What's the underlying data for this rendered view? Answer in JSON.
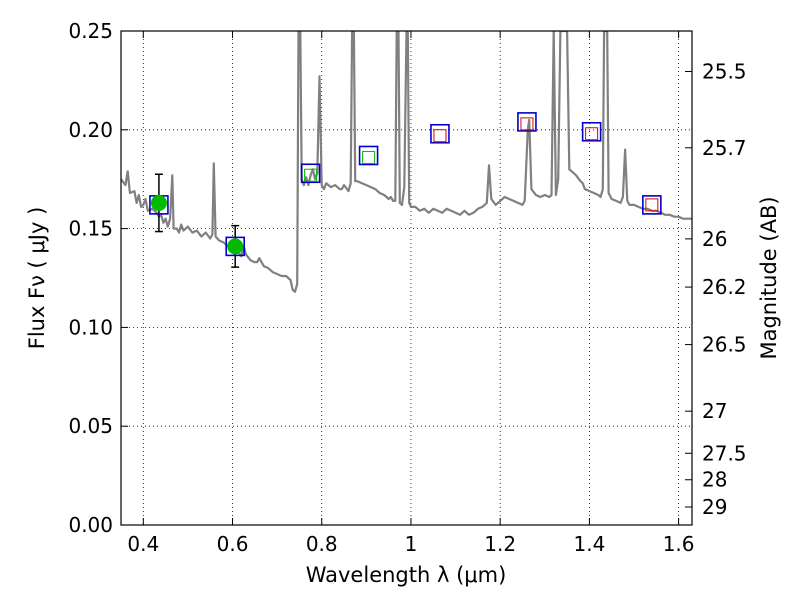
{
  "chart_data": {
    "type": "scatter",
    "xlabel": "Wavelength  λ (μm)",
    "ylabel": "Flux  Fν  ( μJy )",
    "ylabel_right": "Magnitude (AB)",
    "xlim": [
      0.35,
      1.63
    ],
    "ylim": [
      0.0,
      0.25
    ],
    "grid": true,
    "x_ticks": [
      0.4,
      0.6,
      0.8,
      1.0,
      1.2,
      1.4,
      1.6
    ],
    "x_tick_labels": [
      "0.4",
      "0.6",
      "0.8",
      "1",
      "1.2",
      "1.4",
      "1.6"
    ],
    "y_ticks": [
      0.0,
      0.05,
      0.1,
      0.15,
      0.2,
      0.25
    ],
    "y_tick_labels": [
      "0.00",
      "0.05",
      "0.10",
      "0.15",
      "0.20",
      "0.25"
    ],
    "right_ticks": [
      {
        "label": "25.5",
        "flux": 0.2295
      },
      {
        "label": "25.7",
        "flux": 0.1909
      },
      {
        "label": "26",
        "flux": 0.1448
      },
      {
        "label": "26.2",
        "flux": 0.1204
      },
      {
        "label": "26.5",
        "flux": 0.0913
      },
      {
        "label": "27",
        "flux": 0.0576
      },
      {
        "label": "27.5",
        "flux": 0.0363
      },
      {
        "label": "28",
        "flux": 0.0229
      },
      {
        "label": "29",
        "flux": 0.0091
      }
    ],
    "series": [
      {
        "kind": "model_spectrum_line",
        "color": "#808080",
        "points": [
          [
            0.35,
            0.175
          ],
          [
            0.36,
            0.172
          ],
          [
            0.365,
            0.179
          ],
          [
            0.37,
            0.168
          ],
          [
            0.38,
            0.169
          ],
          [
            0.385,
            0.163
          ],
          [
            0.39,
            0.167
          ],
          [
            0.395,
            0.161
          ],
          [
            0.4,
            0.162
          ],
          [
            0.405,
            0.165
          ],
          [
            0.41,
            0.159
          ],
          [
            0.42,
            0.16
          ],
          [
            0.43,
            0.158
          ],
          [
            0.435,
            0.156
          ],
          [
            0.44,
            0.157
          ],
          [
            0.445,
            0.153
          ],
          [
            0.45,
            0.155
          ],
          [
            0.455,
            0.151
          ],
          [
            0.46,
            0.155
          ],
          [
            0.465,
            0.177
          ],
          [
            0.468,
            0.15
          ],
          [
            0.475,
            0.15
          ],
          [
            0.48,
            0.148
          ],
          [
            0.485,
            0.152
          ],
          [
            0.49,
            0.149
          ],
          [
            0.5,
            0.151
          ],
          [
            0.51,
            0.148
          ],
          [
            0.52,
            0.149
          ],
          [
            0.53,
            0.146
          ],
          [
            0.54,
            0.148
          ],
          [
            0.55,
            0.145
          ],
          [
            0.555,
            0.147
          ],
          [
            0.558,
            0.183
          ],
          [
            0.562,
            0.146
          ],
          [
            0.57,
            0.144
          ],
          [
            0.58,
            0.143
          ],
          [
            0.59,
            0.141
          ],
          [
            0.6,
            0.14
          ],
          [
            0.61,
            0.139
          ],
          [
            0.62,
            0.136
          ],
          [
            0.625,
            0.141
          ],
          [
            0.63,
            0.137
          ],
          [
            0.64,
            0.134
          ],
          [
            0.65,
            0.133
          ],
          [
            0.655,
            0.133
          ],
          [
            0.66,
            0.135
          ],
          [
            0.67,
            0.131
          ],
          [
            0.68,
            0.13
          ],
          [
            0.69,
            0.128
          ],
          [
            0.7,
            0.127
          ],
          [
            0.71,
            0.126
          ],
          [
            0.72,
            0.126
          ],
          [
            0.725,
            0.125
          ],
          [
            0.73,
            0.124
          ],
          [
            0.735,
            0.119
          ],
          [
            0.74,
            0.118
          ],
          [
            0.745,
            0.122
          ],
          [
            0.748,
            0.25
          ],
          [
            0.752,
            0.25
          ],
          [
            0.755,
            0.175
          ],
          [
            0.76,
            0.172
          ],
          [
            0.765,
            0.176
          ],
          [
            0.77,
            0.172
          ],
          [
            0.775,
            0.177
          ],
          [
            0.78,
            0.18
          ],
          [
            0.785,
            0.175
          ],
          [
            0.79,
            0.178
          ],
          [
            0.795,
            0.227
          ],
          [
            0.8,
            0.172
          ],
          [
            0.805,
            0.17
          ],
          [
            0.81,
            0.173
          ],
          [
            0.82,
            0.171
          ],
          [
            0.83,
            0.172
          ],
          [
            0.84,
            0.17
          ],
          [
            0.845,
            0.17
          ],
          [
            0.85,
            0.172
          ],
          [
            0.86,
            0.169
          ],
          [
            0.865,
            0.173
          ],
          [
            0.868,
            0.25
          ],
          [
            0.872,
            0.25
          ],
          [
            0.875,
            0.174
          ],
          [
            0.88,
            0.174
          ],
          [
            0.89,
            0.173
          ],
          [
            0.9,
            0.172
          ],
          [
            0.91,
            0.171
          ],
          [
            0.92,
            0.17
          ],
          [
            0.93,
            0.168
          ],
          [
            0.94,
            0.167
          ],
          [
            0.95,
            0.165
          ],
          [
            0.955,
            0.166
          ],
          [
            0.96,
            0.164
          ],
          [
            0.965,
            0.164
          ],
          [
            0.968,
            0.25
          ],
          [
            0.972,
            0.25
          ],
          [
            0.975,
            0.163
          ],
          [
            0.98,
            0.162
          ],
          [
            0.985,
            0.171
          ],
          [
            0.99,
            0.25
          ],
          [
            0.993,
            0.25
          ],
          [
            0.996,
            0.163
          ],
          [
            1.0,
            0.161
          ],
          [
            1.01,
            0.161
          ],
          [
            1.02,
            0.159
          ],
          [
            1.03,
            0.16
          ],
          [
            1.04,
            0.158
          ],
          [
            1.05,
            0.16
          ],
          [
            1.06,
            0.159
          ],
          [
            1.07,
            0.158
          ],
          [
            1.08,
            0.16
          ],
          [
            1.09,
            0.159
          ],
          [
            1.1,
            0.158
          ],
          [
            1.11,
            0.157
          ],
          [
            1.12,
            0.159
          ],
          [
            1.13,
            0.157
          ],
          [
            1.14,
            0.158
          ],
          [
            1.15,
            0.16
          ],
          [
            1.16,
            0.161
          ],
          [
            1.17,
            0.163
          ],
          [
            1.175,
            0.182
          ],
          [
            1.18,
            0.165
          ],
          [
            1.19,
            0.162
          ],
          [
            1.2,
            0.164
          ],
          [
            1.21,
            0.166
          ],
          [
            1.22,
            0.165
          ],
          [
            1.23,
            0.164
          ],
          [
            1.24,
            0.163
          ],
          [
            1.25,
            0.162
          ],
          [
            1.255,
            0.164
          ],
          [
            1.262,
            0.2
          ],
          [
            1.265,
            0.205
          ],
          [
            1.27,
            0.17
          ],
          [
            1.28,
            0.167
          ],
          [
            1.29,
            0.166
          ],
          [
            1.3,
            0.167
          ],
          [
            1.31,
            0.166
          ],
          [
            1.315,
            0.167
          ],
          [
            1.32,
            0.25
          ],
          [
            1.325,
            0.167
          ],
          [
            1.33,
            0.175
          ],
          [
            1.335,
            0.25
          ],
          [
            1.35,
            0.25
          ],
          [
            1.355,
            0.18
          ],
          [
            1.36,
            0.179
          ],
          [
            1.37,
            0.177
          ],
          [
            1.38,
            0.174
          ],
          [
            1.385,
            0.173
          ],
          [
            1.39,
            0.17
          ],
          [
            1.4,
            0.169
          ],
          [
            1.41,
            0.168
          ],
          [
            1.42,
            0.167
          ],
          [
            1.425,
            0.166
          ],
          [
            1.43,
            0.17
          ],
          [
            1.433,
            0.25
          ],
          [
            1.44,
            0.25
          ],
          [
            1.443,
            0.168
          ],
          [
            1.45,
            0.165
          ],
          [
            1.46,
            0.164
          ],
          [
            1.47,
            0.163
          ],
          [
            1.475,
            0.166
          ],
          [
            1.48,
            0.19
          ],
          [
            1.485,
            0.164
          ],
          [
            1.49,
            0.162
          ],
          [
            1.5,
            0.162
          ],
          [
            1.51,
            0.161
          ],
          [
            1.52,
            0.16
          ],
          [
            1.53,
            0.16
          ],
          [
            1.54,
            0.159
          ],
          [
            1.55,
            0.159
          ],
          [
            1.56,
            0.158
          ],
          [
            1.57,
            0.157
          ],
          [
            1.58,
            0.157
          ],
          [
            1.59,
            0.156
          ],
          [
            1.6,
            0.156
          ],
          [
            1.61,
            0.155
          ],
          [
            1.62,
            0.155
          ],
          [
            1.63,
            0.155
          ]
        ]
      },
      {
        "kind": "model_band_fluxes_open_squares",
        "edgecolor": "#0000cc",
        "points": [
          {
            "x": 0.435,
            "y": 0.162
          },
          {
            "x": 0.606,
            "y": 0.141
          },
          {
            "x": 0.775,
            "y": 0.178
          },
          {
            "x": 0.905,
            "y": 0.187
          },
          {
            "x": 1.065,
            "y": 0.198
          },
          {
            "x": 1.26,
            "y": 0.204
          },
          {
            "x": 1.405,
            "y": 0.199
          },
          {
            "x": 1.54,
            "y": 0.162
          }
        ]
      },
      {
        "kind": "observed_fluxes_green_circles",
        "color": "#00bb00",
        "points": [
          {
            "x": 0.435,
            "y": 0.163,
            "yerr": 0.0145
          },
          {
            "x": 0.606,
            "y": 0.141,
            "yerr": 0.0105
          }
        ]
      },
      {
        "kind": "observed_small_green_squares",
        "edgecolor": "#00bb00",
        "points": [
          {
            "x": 0.775,
            "y": 0.177
          },
          {
            "x": 0.905,
            "y": 0.186
          }
        ]
      },
      {
        "kind": "observed_small_red_squares",
        "edgecolor": "#dd0000",
        "points": [
          {
            "x": 1.065,
            "y": 0.197
          },
          {
            "x": 1.26,
            "y": 0.203
          },
          {
            "x": 1.405,
            "y": 0.198
          },
          {
            "x": 1.54,
            "y": 0.162
          }
        ]
      }
    ]
  }
}
